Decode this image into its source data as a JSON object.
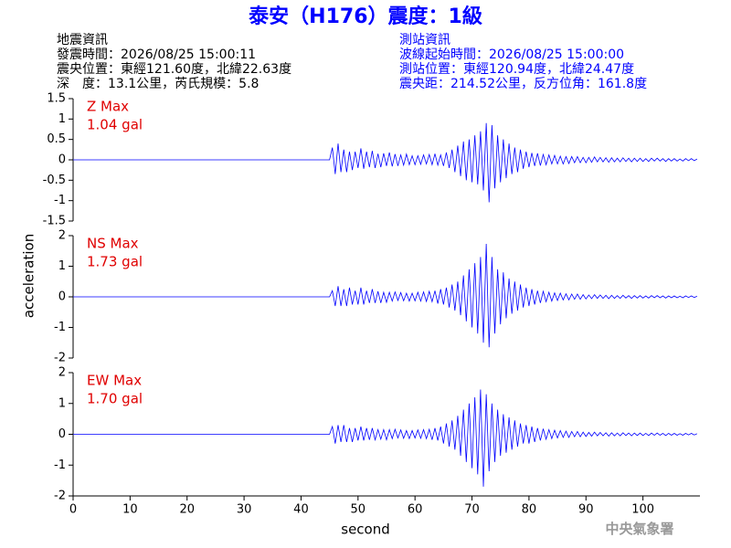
{
  "title": "泰安（H176）震度：1級",
  "info_left": [
    "地震資訊",
    "發震時間：2026/08/25 15:00:11",
    "震央位置：東經121.60度，北緯22.63度",
    "深　度：13.1公里，芮氏規模：5.8"
  ],
  "info_right": [
    "測站資訊",
    "波線起始時間：2026/08/25 15:00:00",
    "測站位置：東經120.94度，北緯24.47度",
    "震央距：214.52公里，反方位角：161.8度"
  ],
  "ylabel": "acceleration",
  "xlabel": "second",
  "agency": "中央氣象署",
  "chart_data": [
    {
      "type": "line",
      "annotation": [
        "Z Max",
        "1.04 gal"
      ],
      "color": "#0000ff",
      "xlim": [
        0,
        110
      ],
      "ylim": [
        -1.5,
        1.5
      ],
      "yticks": [
        -1.5,
        -1,
        -0.5,
        0,
        0.5,
        1,
        1.5
      ],
      "x": [
        0,
        45,
        45.5,
        46,
        46.5,
        47,
        47.5,
        48,
        48.5,
        49,
        49.5,
        50,
        50.5,
        51,
        51.5,
        52,
        52.5,
        53,
        53.5,
        54,
        54.5,
        55,
        55.5,
        56,
        56.5,
        57,
        57.5,
        58,
        58.5,
        59,
        59.5,
        60,
        60.5,
        61,
        61.5,
        62,
        62.5,
        63,
        63.5,
        64,
        64.5,
        65,
        65.5,
        66,
        66.5,
        67,
        67.5,
        68,
        68.5,
        69,
        69.5,
        70,
        70.5,
        71,
        71.5,
        72,
        72.5,
        73,
        73.5,
        74,
        74.5,
        75,
        75.5,
        76,
        76.5,
        77,
        77.5,
        78,
        78.5,
        79,
        79.5,
        80,
        80.5,
        81,
        81.5,
        82,
        82.5,
        83,
        83.5,
        84,
        84.5,
        85,
        85.5,
        86,
        86.5,
        87,
        87.5,
        88,
        88.5,
        89,
        89.5,
        90,
        90.5,
        91,
        91.5,
        92,
        92.5,
        93,
        93.5,
        94,
        94.5,
        95,
        95.5,
        96,
        96.5,
        97,
        97.5,
        98,
        98.5,
        99,
        99.5,
        100,
        100.5,
        101,
        101.5,
        102,
        102.5,
        103,
        103.5,
        104,
        104.5,
        105,
        105.5,
        106,
        106.5,
        107,
        107.5,
        108,
        108.5,
        109,
        109.5
      ],
      "values": [
        0,
        0,
        0.3,
        -0.35,
        0.4,
        -0.3,
        0.25,
        -0.3,
        0.2,
        -0.25,
        0.2,
        -0.2,
        0.28,
        -0.22,
        0.2,
        -0.18,
        0.22,
        -0.2,
        0.15,
        -0.18,
        0.16,
        -0.15,
        0.18,
        -0.16,
        0.14,
        -0.15,
        0.12,
        -0.13,
        0.14,
        -0.12,
        0.1,
        -0.12,
        0.1,
        -0.11,
        0.12,
        -0.1,
        0.13,
        -0.12,
        0.15,
        -0.13,
        0.12,
        -0.15,
        0.18,
        -0.2,
        0.25,
        -0.3,
        0.35,
        -0.4,
        0.45,
        -0.5,
        0.5,
        -0.55,
        0.6,
        -0.6,
        0.7,
        -0.75,
        0.9,
        -1.04,
        0.85,
        -0.7,
        0.6,
        -0.55,
        0.5,
        -0.45,
        0.4,
        -0.35,
        0.3,
        -0.3,
        0.25,
        -0.22,
        0.2,
        -0.18,
        0.17,
        -0.15,
        0.16,
        -0.14,
        0.13,
        -0.12,
        0.12,
        -0.1,
        0.11,
        -0.1,
        0.09,
        -0.1,
        0.08,
        -0.09,
        0.08,
        -0.07,
        0.08,
        -0.07,
        0.06,
        -0.07,
        0.06,
        -0.06,
        0.07,
        -0.05,
        0.06,
        -0.05,
        0.05,
        -0.06,
        0.05,
        -0.05,
        0.04,
        -0.05,
        0.05,
        -0.04,
        0.04,
        -0.05,
        0.04,
        -0.04,
        0.04,
        -0.04,
        0.03,
        -0.04,
        0.04,
        -0.03,
        0.04,
        -0.03,
        0.03,
        -0.04,
        0.03,
        -0.03,
        0.03,
        -0.03,
        0.02,
        -0.03,
        0.03,
        -0.02,
        0.03,
        -0.02,
        0.02
      ]
    },
    {
      "type": "line",
      "annotation": [
        "NS Max",
        "1.73 gal"
      ],
      "color": "#0000ff",
      "xlim": [
        0,
        110
      ],
      "ylim": [
        -2,
        2
      ],
      "yticks": [
        -2,
        -1,
        0,
        1,
        2
      ],
      "x": [
        0,
        45,
        45.5,
        46,
        46.5,
        47,
        47.5,
        48,
        48.5,
        49,
        49.5,
        50,
        50.5,
        51,
        51.5,
        52,
        52.5,
        53,
        53.5,
        54,
        54.5,
        55,
        55.5,
        56,
        56.5,
        57,
        57.5,
        58,
        58.5,
        59,
        59.5,
        60,
        60.5,
        61,
        61.5,
        62,
        62.5,
        63,
        63.5,
        64,
        64.5,
        65,
        65.5,
        66,
        66.5,
        67,
        67.5,
        68,
        68.5,
        69,
        69.5,
        70,
        70.5,
        71,
        71.5,
        72,
        72.5,
        73,
        73.5,
        74,
        74.5,
        75,
        75.5,
        76,
        76.5,
        77,
        77.5,
        78,
        78.5,
        79,
        79.5,
        80,
        80.5,
        81,
        81.5,
        82,
        82.5,
        83,
        83.5,
        84,
        84.5,
        85,
        85.5,
        86,
        86.5,
        87,
        87.5,
        88,
        88.5,
        89,
        89.5,
        90,
        90.5,
        91,
        91.5,
        92,
        92.5,
        93,
        93.5,
        94,
        94.5,
        95,
        95.5,
        96,
        96.5,
        97,
        97.5,
        98,
        98.5,
        99,
        99.5,
        100,
        100.5,
        101,
        101.5,
        102,
        102.5,
        103,
        103.5,
        104,
        104.5,
        105,
        105.5,
        106,
        106.5,
        107,
        107.5,
        108,
        108.5,
        109,
        109.5
      ],
      "values": [
        0,
        0,
        0.2,
        -0.3,
        0.35,
        -0.3,
        0.25,
        -0.3,
        0.3,
        -0.25,
        0.2,
        -0.25,
        0.3,
        -0.25,
        0.2,
        -0.2,
        0.25,
        -0.2,
        0.18,
        -0.2,
        0.15,
        -0.18,
        0.15,
        -0.14,
        0.16,
        -0.12,
        0.14,
        -0.13,
        0.12,
        -0.14,
        0.12,
        -0.13,
        0.15,
        -0.14,
        0.16,
        -0.15,
        0.18,
        -0.16,
        0.2,
        -0.22,
        0.25,
        -0.25,
        0.3,
        -0.35,
        0.4,
        -0.45,
        0.5,
        -0.6,
        0.7,
        -0.8,
        0.9,
        -1.0,
        1.1,
        -1.2,
        1.3,
        -1.5,
        1.73,
        -1.65,
        1.3,
        -1.2,
        0.9,
        -0.9,
        0.8,
        -0.7,
        0.6,
        -0.55,
        0.5,
        -0.45,
        0.4,
        -0.35,
        0.3,
        -0.3,
        0.25,
        -0.25,
        0.2,
        -0.2,
        0.18,
        -0.16,
        0.15,
        -0.14,
        0.13,
        -0.12,
        0.12,
        -0.1,
        0.1,
        -0.1,
        0.09,
        -0.08,
        0.09,
        -0.08,
        0.07,
        -0.07,
        0.06,
        -0.06,
        0.07,
        -0.05,
        0.06,
        -0.05,
        0.05,
        -0.06,
        0.05,
        -0.05,
        0.04,
        -0.05,
        0.05,
        -0.04,
        0.04,
        -0.05,
        0.04,
        -0.04,
        0.04,
        -0.04,
        0.03,
        -0.04,
        0.04,
        -0.03,
        0.04,
        -0.03,
        0.03,
        -0.04,
        0.03,
        -0.03,
        0.03,
        -0.03,
        0.02,
        -0.03,
        0.03,
        -0.02,
        0.03,
        -0.02,
        0.02
      ]
    },
    {
      "type": "line",
      "annotation": [
        "EW Max",
        "1.70 gal"
      ],
      "color": "#0000ff",
      "xlim": [
        0,
        110
      ],
      "ylim": [
        -2,
        2
      ],
      "yticks": [
        -2,
        -1,
        0,
        1,
        2
      ],
      "xticks": [
        0,
        10,
        20,
        30,
        40,
        50,
        60,
        70,
        80,
        90,
        100
      ],
      "x": [
        0,
        45,
        45.5,
        46,
        46.5,
        47,
        47.5,
        48,
        48.5,
        49,
        49.5,
        50,
        50.5,
        51,
        51.5,
        52,
        52.5,
        53,
        53.5,
        54,
        54.5,
        55,
        55.5,
        56,
        56.5,
        57,
        57.5,
        58,
        58.5,
        59,
        59.5,
        60,
        60.5,
        61,
        61.5,
        62,
        62.5,
        63,
        63.5,
        64,
        64.5,
        65,
        65.5,
        66,
        66.5,
        67,
        67.5,
        68,
        68.5,
        69,
        69.5,
        70,
        70.5,
        71,
        71.5,
        72,
        72.5,
        73,
        73.5,
        74,
        74.5,
        75,
        75.5,
        76,
        76.5,
        77,
        77.5,
        78,
        78.5,
        79,
        79.5,
        80,
        80.5,
        81,
        81.5,
        82,
        82.5,
        83,
        83.5,
        84,
        84.5,
        85,
        85.5,
        86,
        86.5,
        87,
        87.5,
        88,
        88.5,
        89,
        89.5,
        90,
        90.5,
        91,
        91.5,
        92,
        92.5,
        93,
        93.5,
        94,
        94.5,
        95,
        95.5,
        96,
        96.5,
        97,
        97.5,
        98,
        98.5,
        99,
        99.5,
        100,
        100.5,
        101,
        101.5,
        102,
        102.5,
        103,
        103.5,
        104,
        104.5,
        105,
        105.5,
        106,
        106.5,
        107,
        107.5,
        108,
        108.5,
        109,
        109.5
      ],
      "values": [
        0,
        0,
        0.25,
        -0.3,
        0.3,
        -0.25,
        0.3,
        -0.25,
        0.2,
        -0.25,
        0.2,
        -0.2,
        0.25,
        -0.2,
        0.2,
        -0.18,
        0.2,
        -0.18,
        0.15,
        -0.16,
        0.15,
        -0.18,
        0.15,
        -0.14,
        0.16,
        -0.12,
        0.14,
        -0.13,
        0.12,
        -0.14,
        0.12,
        -0.12,
        0.14,
        -0.13,
        0.15,
        -0.14,
        0.16,
        -0.18,
        0.2,
        -0.2,
        0.25,
        -0.3,
        0.35,
        -0.4,
        0.45,
        -0.5,
        0.6,
        -0.7,
        0.8,
        -0.9,
        1.0,
        -1.1,
        1.2,
        -1.3,
        1.45,
        -1.7,
        1.3,
        -1.2,
        1.0,
        -0.9,
        0.8,
        -0.7,
        0.65,
        -0.6,
        0.55,
        -0.5,
        0.45,
        -0.4,
        0.35,
        -0.3,
        0.3,
        -0.3,
        0.25,
        -0.25,
        0.2,
        -0.2,
        0.18,
        -0.16,
        0.15,
        -0.14,
        0.13,
        -0.12,
        0.12,
        -0.1,
        0.1,
        -0.1,
        0.09,
        -0.08,
        0.09,
        -0.08,
        0.07,
        -0.07,
        0.06,
        -0.06,
        0.07,
        -0.05,
        0.06,
        -0.05,
        0.05,
        -0.06,
        0.05,
        -0.05,
        0.04,
        -0.05,
        0.05,
        -0.04,
        0.04,
        -0.05,
        0.04,
        -0.04,
        0.04,
        -0.04,
        0.03,
        -0.04,
        0.04,
        -0.03,
        0.04,
        -0.03,
        0.03,
        -0.04,
        0.03,
        -0.03,
        0.03,
        -0.03,
        0.02,
        -0.03,
        0.03,
        -0.02,
        0.03,
        -0.02,
        0.02
      ]
    }
  ]
}
